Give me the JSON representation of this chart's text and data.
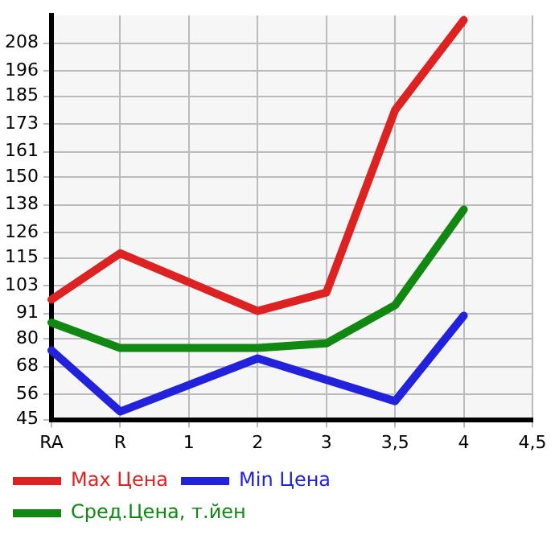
{
  "chart_data": {
    "type": "line",
    "categories": [
      "RA",
      "R",
      "1",
      "2",
      "3",
      "3,5",
      "4",
      "4,5"
    ],
    "series": [
      {
        "name": "Max Цена",
        "color": "#dd2222",
        "values": [
          97,
          117,
          null,
          92,
          100,
          179,
          218,
          null
        ]
      },
      {
        "name": "Min Цена",
        "color": "#2222dd",
        "values": [
          75,
          48.5,
          null,
          71.5,
          null,
          53,
          90,
          null
        ]
      },
      {
        "name": "Сред.Цена, т.йен",
        "color": "#118811",
        "values": [
          87,
          76,
          null,
          76,
          78,
          94.5,
          136,
          null
        ]
      }
    ],
    "ylim": [
      45,
      220
    ],
    "yticks": [
      45,
      56,
      68,
      80,
      91,
      103,
      115,
      126,
      138,
      150,
      161,
      173,
      185,
      196,
      208
    ],
    "grid": true,
    "legend": "bottom",
    "marker": "none",
    "line_style": "solid"
  }
}
